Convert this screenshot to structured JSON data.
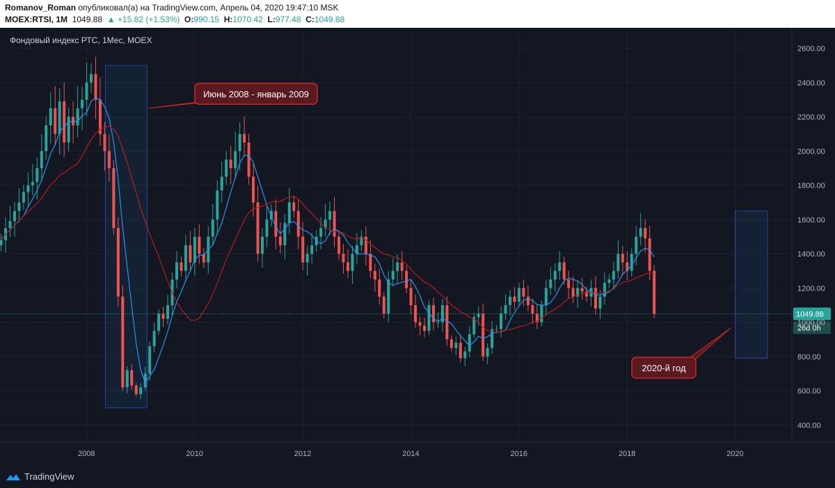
{
  "header": {
    "author": "Romanov_Roman",
    "published_text": " опубликовал(а) на TradingView.com, Апрель 04, 2020 19:47:10 MSK",
    "symbol": "MOEX:RTSI, 1M",
    "last_price": "1049.88",
    "change": "▲ +15.82 (+1.53%)",
    "o_label": "O:",
    "o_value": "990.15",
    "h_label": "H:",
    "h_value": "1070.42",
    "l_label": "L:",
    "l_value": "977.48",
    "c_label": "C:",
    "c_value": "1049.88"
  },
  "footer": {
    "brand": "TradingView"
  },
  "colors": {
    "up": "#26a69a",
    "down": "#ef5350",
    "ma_fast": "#2196f3",
    "ma_slow": "#b71c1c",
    "background": "#131722"
  },
  "chart_data": {
    "type": "candlestick",
    "title": "Фондовый индекс РТС, 1Мес, MOEX",
    "xlabel": "",
    "ylabel": "",
    "ylim": [
      300,
      2720
    ],
    "y_ticks": [
      "2600.00",
      "2400.00",
      "2200.00",
      "2000.00",
      "1800.00",
      "1600.00",
      "1400.00",
      "1200.00",
      "1000.00",
      "800.00",
      "600.00",
      "400.00"
    ],
    "y_tick_values": [
      2600,
      2400,
      2200,
      2000,
      1800,
      1600,
      1400,
      1200,
      1000,
      800,
      600,
      400
    ],
    "x_ticks": [
      "2008",
      "2010",
      "2012",
      "2014",
      "2016",
      "2018",
      "2020"
    ],
    "x_tick_values": [
      2008,
      2010,
      2012,
      2014,
      2016,
      2018,
      2020
    ],
    "xlim": [
      2006.4,
      2021.05
    ],
    "last_price_label": "1049.88",
    "last_price": 1049.88,
    "countdown_label": "26d 0h",
    "annotations": [
      {
        "text": "Июнь 2008 - январь 2009",
        "from": 2008.35,
        "to": 2009.12,
        "low": 500,
        "high": 2500
      },
      {
        "text": "2020-й год",
        "from": 2020.0,
        "to": 2020.6,
        "low": 790,
        "high": 1650
      }
    ],
    "series": [
      {
        "name": "RTSI monthly close",
        "kind": "candles",
        "t_start": 2006.42,
        "t_step": 0.08333,
        "values": [
          1480,
          1550,
          1590,
          1650,
          1700,
          1760,
          1800,
          1820,
          1900,
          2000,
          2150,
          2250,
          2100,
          2290,
          2050,
          2200,
          2150,
          2250,
          2300,
          2400,
          2450,
          2300,
          2100,
          2000,
          1900,
          1550,
          1150,
          620,
          720,
          631,
          580,
          620,
          700,
          860,
          950,
          1050,
          1020,
          1100,
          1250,
          1350,
          1300,
          1450,
          1350,
          1500,
          1400,
          1350,
          1500,
          1600,
          1770,
          1850,
          1950,
          1900,
          2000,
          2100,
          2050,
          1850,
          1700,
          1400,
          1500,
          1600,
          1650,
          1500,
          1450,
          1580,
          1700,
          1650,
          1500,
          1350,
          1400,
          1450,
          1500,
          1550,
          1600,
          1650,
          1500,
          1400,
          1350,
          1300,
          1400,
          1450,
          1500,
          1400,
          1300,
          1250,
          1150,
          1050,
          1250,
          1300,
          1350,
          1300,
          1200,
          1100,
          1000,
          980,
          950,
          1100,
          1000,
          1000,
          1100,
          900,
          850,
          880,
          790,
          830,
          930,
          1030,
          1050,
          800,
          850,
          960,
          960,
          1050,
          1100,
          1150,
          1120,
          1200,
          1150,
          1100,
          1050,
          1000,
          1100,
          1200,
          1250,
          1300,
          1350,
          1250,
          1200,
          1150,
          1200,
          1180,
          1150,
          1200,
          1080,
          1150,
          1230,
          1250,
          1300,
          1400,
          1350,
          1300,
          1400,
          1500,
          1550,
          1490,
          1300,
          1049.88
        ]
      },
      {
        "name": "MA fast",
        "kind": "line",
        "color": "#2196f3",
        "t_start": 2006.42,
        "t_step": 0.08333,
        "window": 6
      },
      {
        "name": "MA slow",
        "kind": "line",
        "color": "#b71c1c",
        "t_start": 2006.42,
        "t_step": 0.08333,
        "window": 18
      }
    ]
  }
}
